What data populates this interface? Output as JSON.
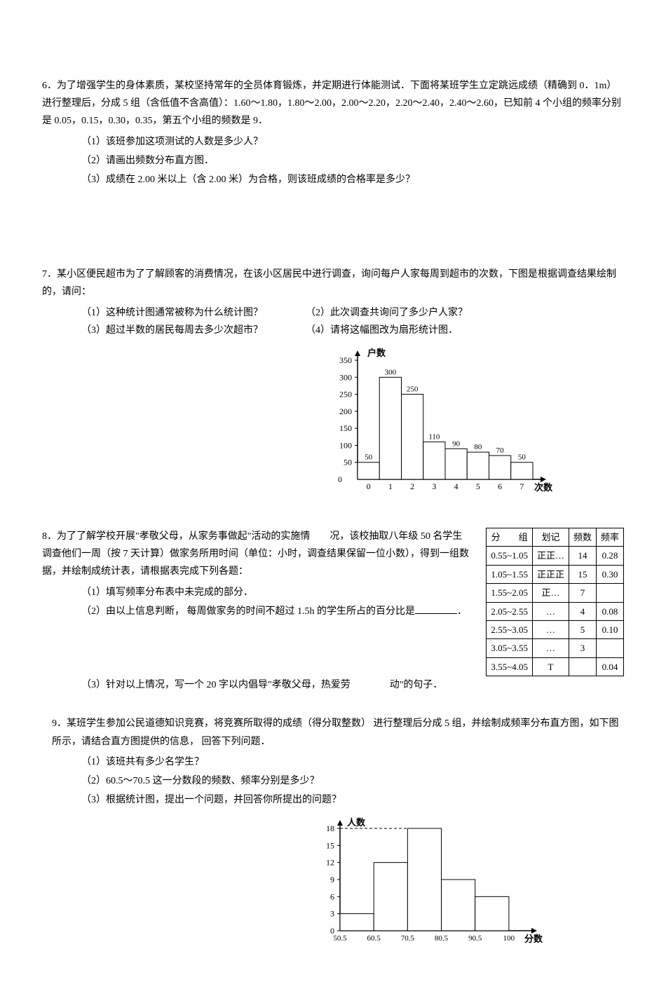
{
  "q6": {
    "text": "6．为了增强学生的身体素质，某校坚持常年的全员体育锻炼，并定期进行体能测试．下面将某班学生立定跳远成绩（精确到 0．1m）进行整理后，分成 5 组（含低值不含高值）：1.60～1.80，1.80～2.00，2.00～2.20，2.20～2.40，2.40～2.60，已知前 4 个小组的频率分别是 0.05，0.15，0.30，0.35，第五个小组的频数是 9．",
    "s1": "（1）该班参加这项测试的人数是多少人？",
    "s2": "（2）请画出频数分布直方图．",
    "s3": "（3）成绩在 2.00 米以上（含 2.00 米）为合格，则该班成绩的合格率是多少？"
  },
  "q7": {
    "text": "7．某小区便民超市为了了解顾客的消费情况，在该小区居民中进行调查，询问每户人家每周到超市的次数，下图是根据调查结果绘制的，请问：",
    "s1a": "（1）这种统计图通常被称为什么统计图？",
    "s1b": "（2）此次调查共询问了多少户人家？",
    "s2a": "（3）超过半数的居民每周去多少次超市？",
    "s2b": "（4）请将这幅图改为扇形统计图．",
    "chart": {
      "ylabel": "户数",
      "xlabel": "次数",
      "yticks": [
        0,
        50,
        100,
        150,
        200,
        250,
        300,
        350
      ],
      "xticks": [
        "0",
        "1",
        "2",
        "3",
        "4",
        "5",
        "6",
        "7"
      ],
      "bars": [
        50,
        300,
        250,
        110,
        90,
        80,
        70,
        50
      ],
      "bar_labels": [
        "50",
        "300",
        "250",
        "110",
        "90",
        "80",
        "70",
        "50"
      ],
      "bar_color": "#ffffff",
      "border_color": "#000000"
    }
  },
  "q8": {
    "text1": " 8．为了了解学校开展\"孝敬父母，从家务事做起\"活动的实施情　　况，该校抽取八年级 50 名学生调查他们一周（按 7 天计算）做家务所用时间（单位：小时，调查结果保留一位小数），得到一组数据，并绘制成统计表，请根据表完成下列各题：",
    "s1": "（1）填写频率分布表中未完成的部分．",
    "s2": "（2）由以上信息判断， 每周做家务的时间不超过 1.5h 的学生所占的百分比是",
    "s2_end": "．",
    "s3": "（3）针对以上情况，写一个 20 字以内倡导\"孝敬父母，热爱劳　　　　动\"的句子．",
    "table": {
      "headers": [
        "分　　组",
        "划记",
        "频数",
        "频率"
      ],
      "rows": [
        [
          "0.55~1.05",
          "正正…",
          "14",
          "0.28"
        ],
        [
          "1.05~1.55",
          "正正正",
          "15",
          "0.30"
        ],
        [
          "1.55~2.05",
          "正…",
          "7",
          ""
        ],
        [
          "2.05~2.55",
          "…",
          "4",
          "0.08"
        ],
        [
          "2.55~3.05",
          "…",
          "5",
          "0.10"
        ],
        [
          "3.05~3.55",
          "…",
          "3",
          ""
        ],
        [
          "3.55~4.05",
          "T",
          "",
          "0.04"
        ]
      ]
    }
  },
  "q9": {
    "text": "9．某班学生参加公民道德知识竞赛，将竞赛所取得的成绩（得分取整数） 进行整理后分成 5 组，并绘制成频率分布直方图，如下图所示，请结合直方图提供的信息， 回答下列问题．",
    "s1": "（1）该班共有多少名学生？",
    "s2": "（2）60.5～70.5 这一分数段的频数、频率分别是多少？",
    "s3": "（3）根据统计图，提出一个问题，并回答你所提出的问题？",
    "chart": {
      "ylabel": "人数",
      "xlabel": "分数",
      "yticks": [
        0,
        3,
        6,
        9,
        12,
        15,
        18
      ],
      "xticks": [
        "50.5",
        "60.5",
        "70.5",
        "80.5",
        "90.5",
        "100"
      ],
      "bars": [
        3,
        12,
        18,
        9,
        6
      ],
      "bar_color": "#ffffff",
      "border_color": "#000000",
      "dashed_value": 18
    }
  }
}
